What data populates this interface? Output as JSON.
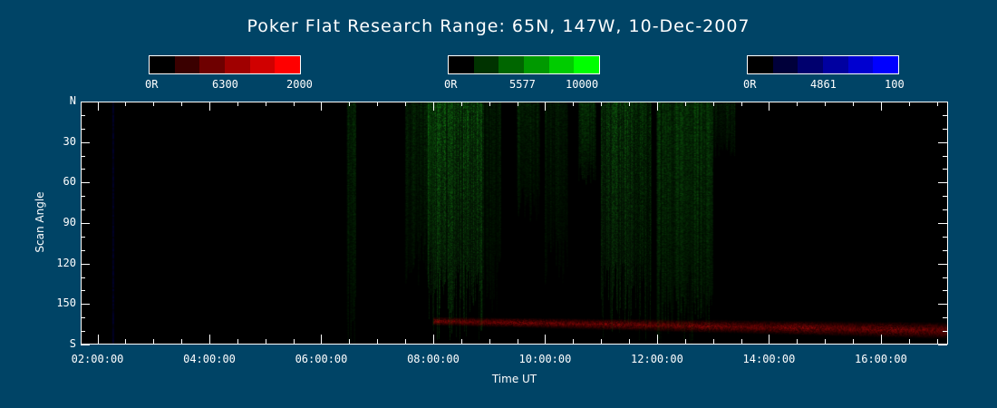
{
  "chart_data": {
    "type": "heatmap",
    "title": "Poker Flat Research Range: 65N, 147W, 10-Dec-2007",
    "xlabel": "Time UT",
    "ylabel": "Scan Angle",
    "x_range_hours": [
      1.7,
      17.2
    ],
    "x_ticks": [
      "02:00:00",
      "04:00:00",
      "06:00:00",
      "08:00:00",
      "10:00:00",
      "12:00:00",
      "14:00:00",
      "16:00:00"
    ],
    "x_tick_hours": [
      2,
      4,
      6,
      8,
      10,
      12,
      14,
      16
    ],
    "y_range": [
      0,
      180
    ],
    "y_ticks": [
      "N",
      "30",
      "60",
      "90",
      "120",
      "150",
      "S"
    ],
    "y_tick_values": [
      0,
      30,
      60,
      90,
      120,
      150,
      180
    ],
    "colorbars": [
      {
        "name": "6300",
        "min_label": "0R",
        "mid_label": "6300",
        "max_label": "2000",
        "colors": [
          "#000000",
          "#3a0000",
          "#6e0000",
          "#a00000",
          "#d00000",
          "#ff0000"
        ]
      },
      {
        "name": "5577",
        "min_label": "0R",
        "mid_label": "5577",
        "max_label": "10000",
        "colors": [
          "#000000",
          "#003300",
          "#006600",
          "#009900",
          "#00cc00",
          "#00ff00"
        ]
      },
      {
        "name": "4861",
        "min_label": "0R",
        "mid_label": "4861",
        "max_label": "100",
        "colors": [
          "#000000",
          "#00003a",
          "#00006e",
          "#0000a0",
          "#0000d0",
          "#0000ff"
        ]
      }
    ],
    "green_5577_bands": [
      {
        "start": 6.45,
        "end": 6.6,
        "angle_from": 0,
        "angle_to": 180,
        "intensity": 0.35
      },
      {
        "start": 7.5,
        "end": 8.0,
        "angle_from": 0,
        "angle_to": 130,
        "intensity": 0.35
      },
      {
        "start": 7.9,
        "end": 8.9,
        "angle_from": 0,
        "angle_to": 170,
        "intensity": 0.6
      },
      {
        "start": 8.9,
        "end": 9.2,
        "angle_from": 0,
        "angle_to": 150,
        "intensity": 0.3
      },
      {
        "start": 9.5,
        "end": 9.9,
        "angle_from": 0,
        "angle_to": 90,
        "intensity": 0.35
      },
      {
        "start": 10.0,
        "end": 10.4,
        "angle_from": 0,
        "angle_to": 130,
        "intensity": 0.3
      },
      {
        "start": 10.6,
        "end": 10.9,
        "angle_from": 0,
        "angle_to": 60,
        "intensity": 0.45
      },
      {
        "start": 11.0,
        "end": 11.6,
        "angle_from": 0,
        "angle_to": 170,
        "intensity": 0.5
      },
      {
        "start": 11.6,
        "end": 11.9,
        "angle_from": 0,
        "angle_to": 170,
        "intensity": 0.4
      },
      {
        "start": 12.0,
        "end": 13.0,
        "angle_from": 0,
        "angle_to": 175,
        "intensity": 0.55
      },
      {
        "start": 13.0,
        "end": 13.4,
        "angle_from": 0,
        "angle_to": 40,
        "intensity": 0.3
      }
    ],
    "red_6300_band": {
      "start": 8.0,
      "end": 17.2,
      "angle_start": 163,
      "angle_end": 170,
      "thickness": 8,
      "intensity": 0.7
    }
  }
}
